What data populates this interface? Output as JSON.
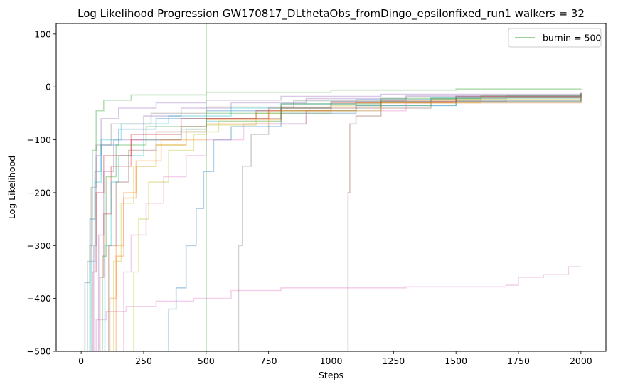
{
  "chart_data": {
    "type": "line",
    "title": "Log Likelihood Progression GW170817_DLthetaObs_fromDingo_epsilonfixed_run1 walkers = 32",
    "xlabel": "Steps",
    "ylabel": "Log Likelihood",
    "xlim": [
      -100,
      2100
    ],
    "ylim": [
      -500,
      120
    ],
    "xticks": [
      0,
      250,
      500,
      750,
      1000,
      1250,
      1500,
      1750,
      2000
    ],
    "xtick_labels": [
      "0",
      "250",
      "500",
      "750",
      "1000",
      "1250",
      "1500",
      "1750",
      "2000"
    ],
    "yticks": [
      -500,
      -400,
      -300,
      -200,
      -100,
      0,
      100
    ],
    "ytick_labels": [
      "−500",
      "−400",
      "−300",
      "−200",
      "−100",
      "0",
      "100"
    ],
    "grid": false,
    "legend": {
      "placement": "top-right",
      "entries": [
        {
          "label": "burnin = 500",
          "color": "#2ca02c"
        }
      ]
    },
    "burnin": {
      "x": 500,
      "color": "#2ca02c"
    },
    "series": [
      {
        "color": "#1f77b4",
        "points": [
          [
            0,
            -500
          ],
          [
            15,
            -370
          ],
          [
            35,
            -250
          ],
          [
            55,
            -160
          ],
          [
            80,
            -110
          ],
          [
            150,
            -80
          ],
          [
            300,
            -60
          ],
          [
            500,
            -45
          ],
          [
            800,
            -32
          ],
          [
            1100,
            -24
          ],
          [
            1500,
            -18
          ],
          [
            2000,
            -13
          ]
        ]
      },
      {
        "color": "#ff7f0e",
        "points": [
          [
            95,
            -500
          ],
          [
            115,
            -400
          ],
          [
            140,
            -300
          ],
          [
            170,
            -200
          ],
          [
            220,
            -150
          ],
          [
            300,
            -110
          ],
          [
            420,
            -80
          ],
          [
            500,
            -62
          ],
          [
            800,
            -38
          ],
          [
            1200,
            -25
          ],
          [
            1600,
            -18
          ],
          [
            2000,
            -14
          ]
        ]
      },
      {
        "color": "#2ca02c",
        "points": [
          [
            20,
            -500
          ],
          [
            35,
            -300
          ],
          [
            45,
            -120
          ],
          [
            60,
            -45
          ],
          [
            90,
            -25
          ],
          [
            200,
            -15
          ],
          [
            500,
            -10
          ],
          [
            1000,
            -6
          ],
          [
            1500,
            -4
          ],
          [
            2000,
            -3
          ]
        ]
      },
      {
        "color": "#d62728",
        "points": [
          [
            60,
            -500
          ],
          [
            75,
            -360
          ],
          [
            90,
            -240
          ],
          [
            120,
            -150
          ],
          [
            200,
            -100
          ],
          [
            400,
            -75
          ],
          [
            500,
            -60
          ],
          [
            750,
            -40
          ],
          [
            1000,
            -28
          ],
          [
            1500,
            -18
          ],
          [
            2000,
            -12
          ]
        ]
      },
      {
        "color": "#9467bd",
        "points": [
          [
            40,
            -500
          ],
          [
            50,
            -300
          ],
          [
            60,
            -130
          ],
          [
            80,
            -60
          ],
          [
            150,
            -40
          ],
          [
            300,
            -30
          ],
          [
            500,
            -25
          ],
          [
            800,
            -18
          ],
          [
            1200,
            -14
          ],
          [
            2000,
            -10
          ]
        ]
      },
      {
        "color": "#8c564b",
        "points": [
          [
            1065,
            -500
          ],
          [
            1068,
            -200
          ],
          [
            1075,
            -70
          ],
          [
            1100,
            -55
          ],
          [
            1200,
            -40
          ],
          [
            1400,
            -28
          ],
          [
            1700,
            -20
          ],
          [
            2000,
            -15
          ]
        ]
      },
      {
        "color": "#e377c2",
        "points": [
          [
            20,
            -500
          ],
          [
            60,
            -440
          ],
          [
            100,
            -425
          ],
          [
            180,
            -415
          ],
          [
            300,
            -405
          ],
          [
            450,
            -400
          ],
          [
            600,
            -385
          ],
          [
            800,
            -380
          ],
          [
            1000,
            -380
          ],
          [
            1300,
            -378
          ],
          [
            1500,
            -378
          ],
          [
            1700,
            -375
          ],
          [
            1750,
            -360
          ],
          [
            1850,
            -355
          ],
          [
            1950,
            -340
          ],
          [
            2000,
            -340
          ]
        ]
      },
      {
        "color": "#7f7f7f",
        "points": [
          [
            625,
            -500
          ],
          [
            630,
            -300
          ],
          [
            645,
            -150
          ],
          [
            680,
            -90
          ],
          [
            750,
            -70
          ],
          [
            900,
            -45
          ],
          [
            1100,
            -30
          ],
          [
            1400,
            -22
          ],
          [
            1700,
            -17
          ],
          [
            2000,
            -13
          ]
        ]
      },
      {
        "color": "#bcbd22",
        "points": [
          [
            200,
            -500
          ],
          [
            210,
            -350
          ],
          [
            230,
            -250
          ],
          [
            270,
            -180
          ],
          [
            350,
            -120
          ],
          [
            450,
            -90
          ],
          [
            500,
            -72
          ],
          [
            700,
            -50
          ],
          [
            1000,
            -35
          ],
          [
            1400,
            -23
          ],
          [
            2000,
            -16
          ]
        ]
      },
      {
        "color": "#17becf",
        "points": [
          [
            80,
            -500
          ],
          [
            95,
            -300
          ],
          [
            120,
            -180
          ],
          [
            150,
            -130
          ],
          [
            250,
            -100
          ],
          [
            400,
            -80
          ],
          [
            500,
            -65
          ],
          [
            800,
            -45
          ],
          [
            1100,
            -35
          ],
          [
            1500,
            -28
          ],
          [
            2000,
            -22
          ]
        ]
      },
      {
        "color": "#1f77b4",
        "points": [
          [
            340,
            -500
          ],
          [
            350,
            -420
          ],
          [
            380,
            -380
          ],
          [
            420,
            -300
          ],
          [
            460,
            -230
          ],
          [
            490,
            -160
          ],
          [
            530,
            -100
          ],
          [
            600,
            -75
          ],
          [
            800,
            -50
          ],
          [
            1100,
            -35
          ],
          [
            1500,
            -25
          ],
          [
            2000,
            -18
          ]
        ]
      },
      {
        "color": "#e377c2",
        "points": [
          [
            150,
            -500
          ],
          [
            170,
            -350
          ],
          [
            200,
            -280
          ],
          [
            260,
            -220
          ],
          [
            330,
            -170
          ],
          [
            420,
            -130
          ],
          [
            500,
            -100
          ],
          [
            650,
            -70
          ],
          [
            900,
            -45
          ],
          [
            1300,
            -30
          ],
          [
            2000,
            -18
          ]
        ]
      },
      {
        "color": "#d62728",
        "points": [
          [
            30,
            -500
          ],
          [
            45,
            -350
          ],
          [
            60,
            -200
          ],
          [
            90,
            -130
          ],
          [
            200,
            -90
          ],
          [
            400,
            -60
          ],
          [
            700,
            -45
          ],
          [
            1000,
            -30
          ],
          [
            1500,
            -20
          ],
          [
            2000,
            -14
          ]
        ]
      },
      {
        "color": "#9467bd",
        "points": [
          [
            50,
            -500
          ],
          [
            70,
            -280
          ],
          [
            90,
            -160
          ],
          [
            130,
            -100
          ],
          [
            250,
            -55
          ],
          [
            400,
            -40
          ],
          [
            600,
            -30
          ],
          [
            900,
            -22
          ],
          [
            1300,
            -17
          ],
          [
            2000,
            -12
          ]
        ]
      },
      {
        "color": "#ff7f0e",
        "points": [
          [
            120,
            -500
          ],
          [
            140,
            -320
          ],
          [
            170,
            -210
          ],
          [
            220,
            -140
          ],
          [
            320,
            -100
          ],
          [
            500,
            -70
          ],
          [
            750,
            -45
          ],
          [
            1100,
            -30
          ],
          [
            1600,
            -20
          ],
          [
            2000,
            -15
          ]
        ]
      },
      {
        "color": "#17becf",
        "points": [
          [
            25,
            -500
          ],
          [
            40,
            -330
          ],
          [
            55,
            -180
          ],
          [
            80,
            -100
          ],
          [
            160,
            -70
          ],
          [
            350,
            -55
          ],
          [
            600,
            -40
          ],
          [
            1000,
            -28
          ],
          [
            1400,
            -21
          ],
          [
            2000,
            -16
          ]
        ]
      },
      {
        "color": "#2ca02c",
        "points": [
          [
            70,
            -500
          ],
          [
            85,
            -320
          ],
          [
            100,
            -170
          ],
          [
            140,
            -110
          ],
          [
            260,
            -75
          ],
          [
            500,
            -50
          ],
          [
            800,
            -32
          ],
          [
            1200,
            -22
          ],
          [
            1600,
            -16
          ],
          [
            2000,
            -12
          ]
        ]
      },
      {
        "color": "#bcbd22",
        "points": [
          [
            110,
            -500
          ],
          [
            130,
            -330
          ],
          [
            160,
            -220
          ],
          [
            210,
            -150
          ],
          [
            300,
            -110
          ],
          [
            420,
            -85
          ],
          [
            550,
            -65
          ],
          [
            800,
            -45
          ],
          [
            1200,
            -30
          ],
          [
            2000,
            -17
          ]
        ]
      },
      {
        "color": "#8c564b",
        "points": [
          [
            90,
            -500
          ],
          [
            110,
            -300
          ],
          [
            140,
            -180
          ],
          [
            190,
            -120
          ],
          [
            300,
            -85
          ],
          [
            500,
            -60
          ],
          [
            800,
            -40
          ],
          [
            1200,
            -27
          ],
          [
            2000,
            -14
          ]
        ]
      },
      {
        "color": "#7f7f7f",
        "points": [
          [
            10,
            -500
          ],
          [
            25,
            -330
          ],
          [
            40,
            -190
          ],
          [
            60,
            -110
          ],
          [
            120,
            -70
          ],
          [
            280,
            -50
          ],
          [
            500,
            -38
          ],
          [
            850,
            -26
          ],
          [
            1300,
            -19
          ],
          [
            2000,
            -13
          ]
        ]
      }
    ]
  }
}
